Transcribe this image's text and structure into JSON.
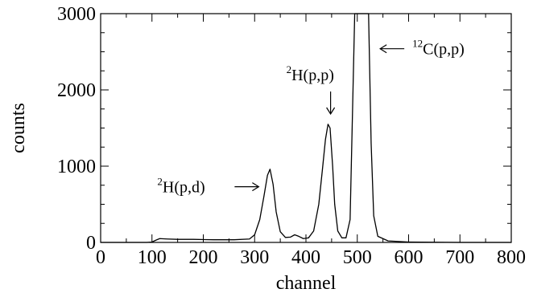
{
  "chart_data": {
    "type": "line",
    "title": "",
    "xlabel": "channel",
    "ylabel": "counts",
    "xlim": [
      0,
      800
    ],
    "ylim": [
      0,
      3000
    ],
    "x_ticks": [
      0,
      100,
      200,
      300,
      400,
      500,
      600,
      700,
      800
    ],
    "y_ticks": [
      0,
      1000,
      2000,
      3000
    ],
    "grid": false,
    "legend": "none",
    "line_color": "#000000",
    "series": [
      {
        "x": [
          0,
          90,
          100,
          108,
          115,
          130,
          150,
          180,
          220,
          260,
          290,
          300,
          310,
          318,
          325,
          330,
          336,
          342,
          350,
          360,
          370,
          378,
          386,
          395,
          405,
          415,
          425,
          432,
          438,
          443,
          447,
          452,
          456,
          462,
          470,
          478,
          486,
          490,
          495,
          500,
          510,
          518,
          522,
          527,
          532,
          540,
          560,
          600,
          700,
          800
        ],
        "y": [
          0,
          0,
          5,
          30,
          50,
          45,
          40,
          40,
          35,
          35,
          45,
          100,
          300,
          600,
          880,
          960,
          760,
          400,
          140,
          65,
          70,
          100,
          80,
          50,
          60,
          150,
          500,
          950,
          1350,
          1550,
          1500,
          1000,
          500,
          150,
          60,
          60,
          300,
          1500,
          3000,
          3000,
          3000,
          3000,
          3000,
          1300,
          350,
          80,
          20,
          5,
          0,
          0
        ]
      }
    ],
    "annotations": [
      {
        "sup": "2",
        "text": "H(p,d)",
        "arrow": "right",
        "x": 330,
        "y": 730
      },
      {
        "sup": "2",
        "text": "H(p,p)",
        "arrow": "down",
        "x": 448,
        "y": 1600
      },
      {
        "sup": "12",
        "text": "C(p,p)",
        "arrow": "left",
        "x": 532,
        "y": 2540
      }
    ]
  }
}
